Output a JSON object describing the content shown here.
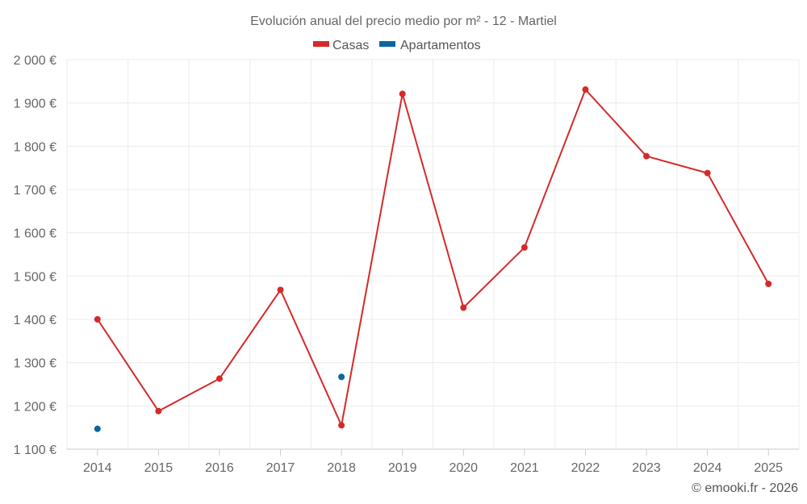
{
  "chart_data": {
    "type": "line",
    "title": "Evolución anual del precio medio por m² - 12 - Martiel",
    "categories": [
      "2014",
      "2015",
      "2016",
      "2017",
      "2018",
      "2019",
      "2020",
      "2021",
      "2022",
      "2023",
      "2024",
      "2025"
    ],
    "series": [
      {
        "name": "Casas",
        "color": "#d42a2a",
        "values": [
          1400,
          1188,
          1263,
          1468,
          1155,
          1921,
          1427,
          1566,
          1931,
          1777,
          1738,
          1482
        ]
      },
      {
        "name": "Apartamentos",
        "color": "#0a66a0",
        "values": [
          1147,
          null,
          null,
          null,
          1267,
          null,
          null,
          null,
          null,
          null,
          null,
          null
        ]
      }
    ],
    "y_ticks": [
      "1 100 €",
      "1 200 €",
      "1 300 €",
      "1 400 €",
      "1 500 €",
      "1 600 €",
      "1 700 €",
      "1 800 €",
      "1 900 €",
      "2 000 €"
    ],
    "ylim": [
      1100,
      2000
    ],
    "grid": true,
    "legend_position": "top-center"
  },
  "credit": "© emooki.fr - 2026"
}
